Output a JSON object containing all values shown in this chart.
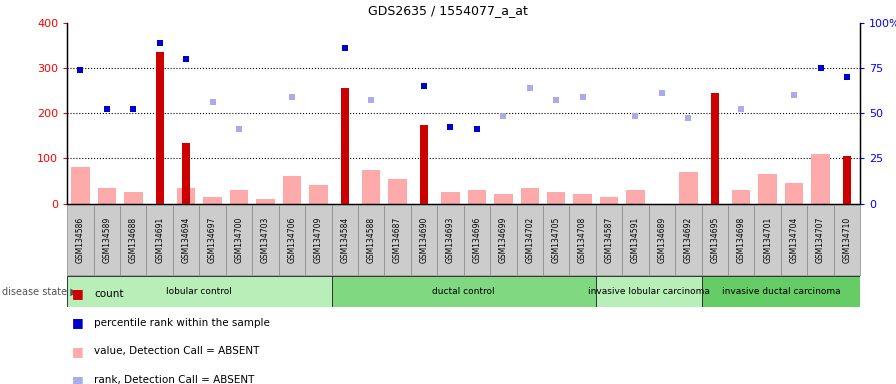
{
  "title": "GDS2635 / 1554077_a_at",
  "samples": [
    "GSM134586",
    "GSM134589",
    "GSM134688",
    "GSM134691",
    "GSM134694",
    "GSM134697",
    "GSM134700",
    "GSM134703",
    "GSM134706",
    "GSM134709",
    "GSM134584",
    "GSM134588",
    "GSM134687",
    "GSM134690",
    "GSM134693",
    "GSM134696",
    "GSM134699",
    "GSM134702",
    "GSM134705",
    "GSM134708",
    "GSM134587",
    "GSM134591",
    "GSM134689",
    "GSM134692",
    "GSM134695",
    "GSM134698",
    "GSM134701",
    "GSM134704",
    "GSM134707",
    "GSM134710"
  ],
  "count_values": [
    null,
    null,
    null,
    335,
    135,
    null,
    null,
    null,
    null,
    null,
    255,
    null,
    null,
    175,
    null,
    null,
    null,
    null,
    null,
    null,
    null,
    null,
    null,
    null,
    245,
    null,
    null,
    null,
    null,
    105
  ],
  "value_absent": [
    80,
    35,
    25,
    null,
    35,
    15,
    30,
    10,
    60,
    40,
    null,
    75,
    55,
    null,
    25,
    30,
    20,
    35,
    25,
    20,
    15,
    30,
    null,
    70,
    null,
    30,
    65,
    45,
    110,
    null
  ],
  "percentile_rank": [
    295,
    210,
    210,
    355,
    320,
    null,
    null,
    null,
    null,
    null,
    345,
    null,
    null,
    260,
    170,
    165,
    null,
    null,
    null,
    null,
    null,
    null,
    null,
    null,
    null,
    null,
    null,
    null,
    300,
    280
  ],
  "rank_absent": [
    null,
    null,
    null,
    null,
    null,
    225,
    165,
    null,
    235,
    null,
    null,
    230,
    null,
    null,
    null,
    null,
    195,
    255,
    230,
    235,
    null,
    195,
    245,
    190,
    null,
    210,
    null,
    240,
    null,
    null
  ],
  "disease_groups": [
    {
      "label": "lobular control",
      "start": 0,
      "end": 10
    },
    {
      "label": "ductal control",
      "start": 10,
      "end": 20
    },
    {
      "label": "invasive lobular carcinoma",
      "start": 20,
      "end": 24
    },
    {
      "label": "invasive ductal carcinoma",
      "start": 24,
      "end": 30
    }
  ],
  "left_ylim": [
    0,
    400
  ],
  "right_ylim": [
    0,
    100
  ],
  "left_yticks": [
    0,
    100,
    200,
    300,
    400
  ],
  "right_yticks": [
    0,
    25,
    50,
    75,
    100
  ],
  "right_yticklabels": [
    "0",
    "25",
    "50",
    "75",
    "100%"
  ],
  "bar_color_count": "#cc0000",
  "bar_color_absent": "#ffaaaa",
  "dot_color_rank": "#0000cc",
  "dot_color_rank_absent": "#aaaaee",
  "group_colors": [
    "#c8f0c8",
    "#88e088",
    "#c8f0c8",
    "#66cc66"
  ],
  "dotted_line_color": "black",
  "xlabel_bg": "#cccccc",
  "disease_bar_border": "#444444"
}
